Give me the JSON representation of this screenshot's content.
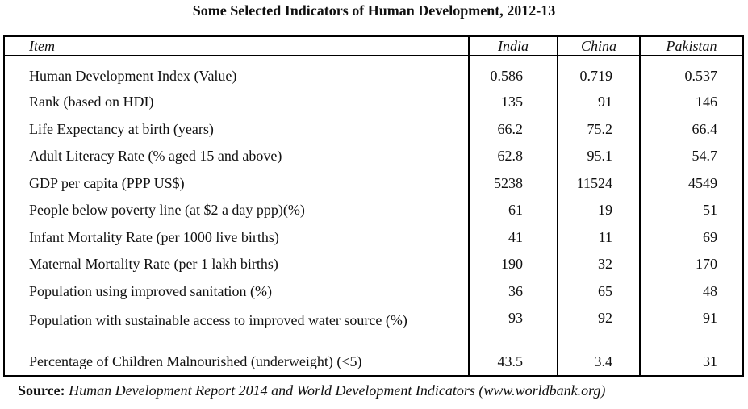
{
  "title": "Some Selected Indicators of Human Development, 2012-13",
  "table": {
    "header": [
      "Item",
      "India",
      "China",
      "Pakistan"
    ],
    "rows": [
      [
        "Human Development Index (Value)",
        "0.586",
        "0.719",
        "0.537"
      ],
      [
        "Rank (based on HDI)",
        "135",
        "91",
        "146"
      ],
      [
        "Life Expectancy at birth (years)",
        "66.2",
        "75.2",
        "66.4"
      ],
      [
        "Adult Literacy Rate (% aged 15 and above)",
        "62.8",
        "95.1",
        "54.7"
      ],
      [
        "GDP per capita (PPP US$)",
        "5238",
        "11524",
        "4549"
      ],
      [
        "People below poverty line (at $2 a day ppp)(%)",
        "61",
        "19",
        "51"
      ],
      [
        "Infant Mortality Rate (per 1000 live births)",
        "41",
        "11",
        "69"
      ],
      [
        "Maternal Mortality Rate (per 1 lakh births)",
        "190",
        "32",
        "170"
      ],
      [
        "Population  using improved sanitation (%)",
        "36",
        "65",
        "48"
      ],
      [
        "Population with sustainable access to improved water source (%)",
        "93",
        "92",
        "91"
      ],
      [
        "Percentage of Children Malnourished (underweight) (<5)",
        "43.5",
        "3.4",
        "31"
      ]
    ]
  },
  "source": {
    "label": "Source:",
    "text": "Human Development Report 2014 and World Development Indicators (www.worldbank.org)"
  }
}
